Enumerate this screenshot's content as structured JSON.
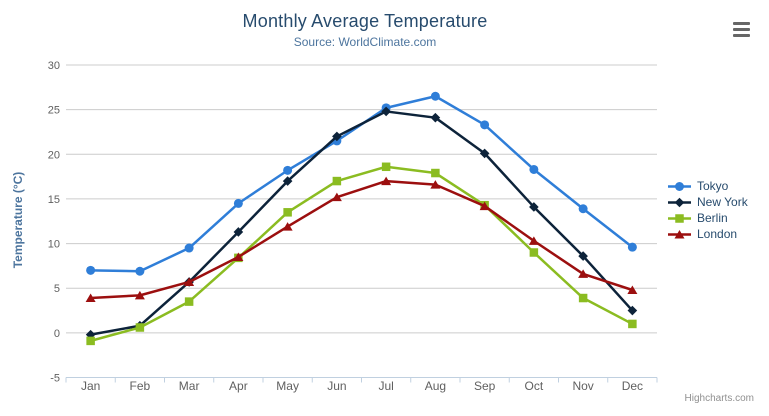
{
  "header": {
    "title": "Monthly Average Temperature",
    "subtitle": "Source: WorldClimate.com"
  },
  "credits_label": "Highcharts.com",
  "menu_icon": "hamburger-icon",
  "theme": {
    "title_color": "#274b6d",
    "subtitle_color": "#4d759e",
    "axis_title_color": "#4d759e",
    "tick_label_color": "#606060",
    "grid_color": "#cccccc",
    "axis_line_color": "#c0d0e0",
    "legend_text_color": "#274b6d",
    "credits_color": "#909090",
    "menu_icon_color": "#666666",
    "background": "#ffffff"
  },
  "chart_data": {
    "type": "line",
    "title": "Monthly Average Temperature",
    "subtitle": "Source: WorldClimate.com",
    "xlabel": "",
    "ylabel": "Temperature (°C)",
    "categories": [
      "Jan",
      "Feb",
      "Mar",
      "Apr",
      "May",
      "Jun",
      "Jul",
      "Aug",
      "Sep",
      "Oct",
      "Nov",
      "Dec"
    ],
    "ylim": [
      -5,
      30
    ],
    "yticks": [
      -5,
      0,
      5,
      10,
      15,
      20,
      25,
      30
    ],
    "grid": true,
    "legend_position": "right",
    "series": [
      {
        "name": "Tokyo",
        "color": "#2f7ed8",
        "marker": "circle",
        "values": [
          7.0,
          6.9,
          9.5,
          14.5,
          18.2,
          21.5,
          25.2,
          26.5,
          23.3,
          18.3,
          13.9,
          9.6
        ]
      },
      {
        "name": "New York",
        "color": "#0d233a",
        "marker": "diamond",
        "values": [
          -0.2,
          0.8,
          5.7,
          11.3,
          17.0,
          22.0,
          24.8,
          24.1,
          20.1,
          14.1,
          8.6,
          2.5
        ]
      },
      {
        "name": "Berlin",
        "color": "#8bbc21",
        "marker": "square",
        "values": [
          -0.9,
          0.6,
          3.5,
          8.4,
          13.5,
          17.0,
          18.6,
          17.9,
          14.3,
          9.0,
          3.9,
          1.0
        ]
      },
      {
        "name": "London",
        "color": "#9c0f0f",
        "marker": "triangle",
        "values": [
          3.9,
          4.2,
          5.7,
          8.5,
          11.9,
          15.2,
          17.0,
          16.6,
          14.2,
          10.3,
          6.6,
          4.8
        ]
      }
    ]
  }
}
